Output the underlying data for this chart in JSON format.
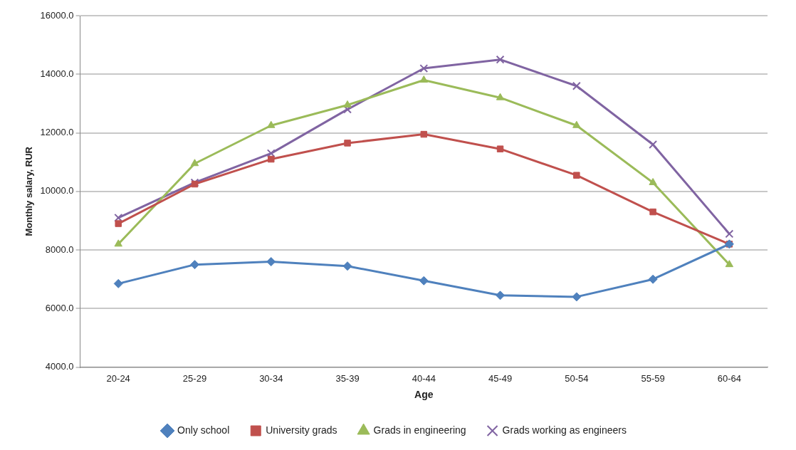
{
  "chart_data": {
    "type": "line",
    "xlabel": "Age",
    "ylabel": "Monthly salary, RUR",
    "categories": [
      "20-24",
      "25-29",
      "30-34",
      "35-39",
      "40-44",
      "45-49",
      "50-54",
      "55-59",
      "60-64"
    ],
    "series": [
      {
        "name": "Only school",
        "color": "#4f81bd",
        "marker": "diamond",
        "values": [
          6850,
          7500,
          7600,
          7450,
          6950,
          6450,
          6400,
          7000,
          8200
        ]
      },
      {
        "name": "University grads",
        "color": "#c0504d",
        "marker": "square",
        "values": [
          8900,
          10250,
          11100,
          11650,
          11950,
          11450,
          10550,
          9300,
          8200
        ]
      },
      {
        "name": "Grads in engineering",
        "color": "#9bbb59",
        "marker": "triangle",
        "values": [
          8200,
          10950,
          12250,
          12950,
          13800,
          13200,
          12250,
          10300,
          7500
        ]
      },
      {
        "name": "Grads working as engineers",
        "color": "#8064a2",
        "marker": "cross",
        "values": [
          9100,
          10300,
          11300,
          12800,
          14200,
          14500,
          13600,
          11600,
          8550
        ]
      }
    ],
    "ylim": [
      4000,
      16000
    ],
    "yticks": [
      {
        "value": 4000,
        "label": "4000.0"
      },
      {
        "value": 6000,
        "label": "6000.0"
      },
      {
        "value": 8000,
        "label": "8000.0"
      },
      {
        "value": 10000,
        "label": "10000.0"
      },
      {
        "value": 12000,
        "label": "12000.0"
      },
      {
        "value": 14000,
        "label": "14000.0"
      },
      {
        "value": 16000,
        "label": "16000.0"
      }
    ],
    "grid": "y",
    "legend": "bottom",
    "line_style": "solid"
  }
}
